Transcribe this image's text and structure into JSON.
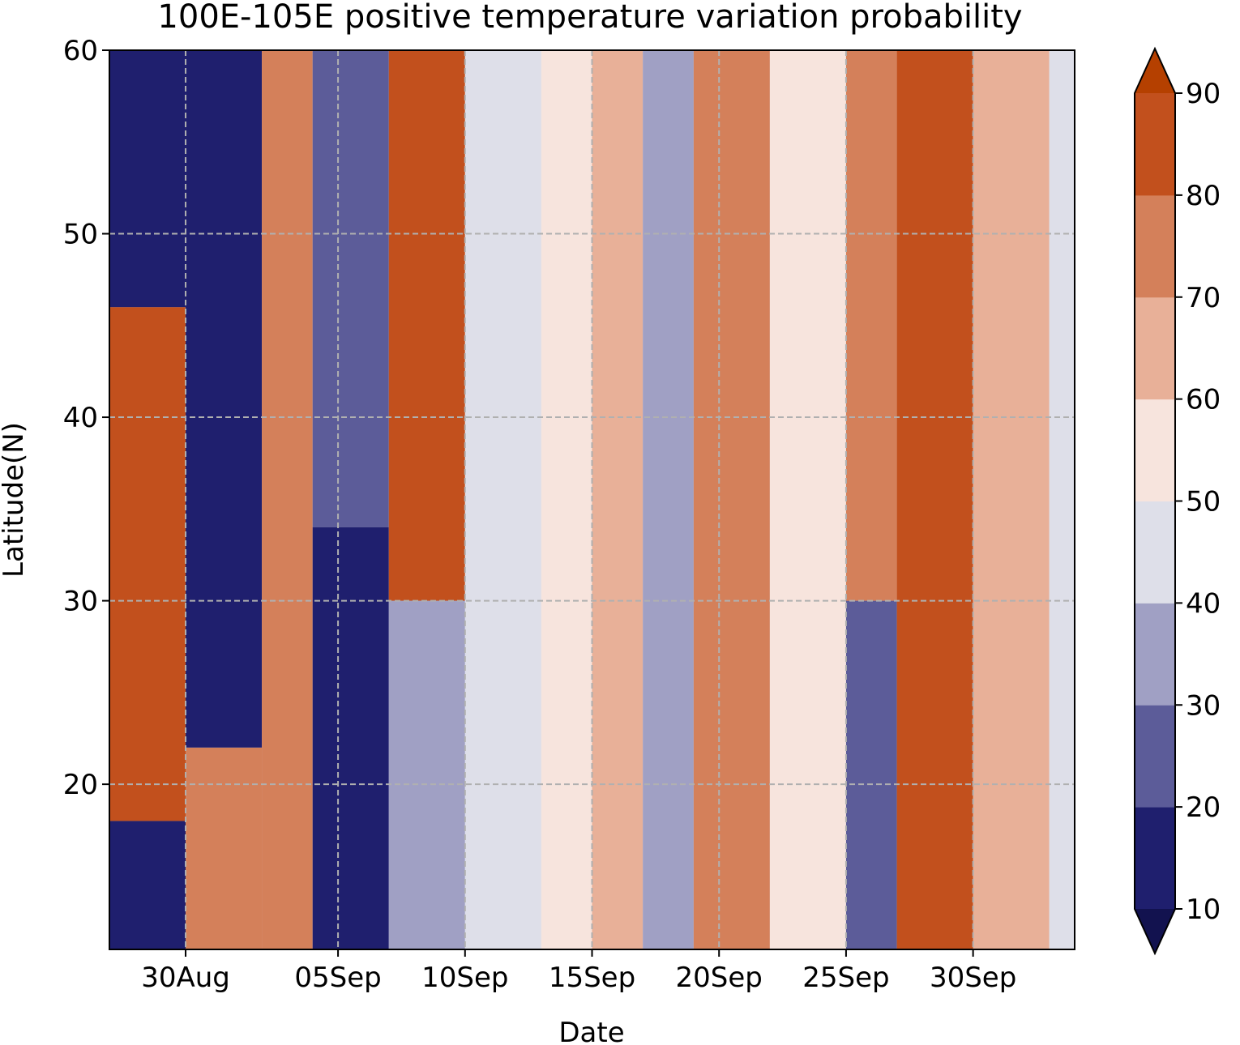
{
  "chart_data": {
    "type": "heatmap",
    "subtype": "filled-contour",
    "title": "100E-105E positive temperature variation probability",
    "xlabel": "Date",
    "ylabel": "Latitude(N)",
    "x_tick_labels": [
      "30Aug",
      "05Sep",
      "10Sep",
      "15Sep",
      "20Sep",
      "25Sep",
      "30Sep"
    ],
    "x_tick_dates": [
      "08-30",
      "09-05",
      "09-10",
      "09-15",
      "09-20",
      "09-25",
      "09-30"
    ],
    "xlim": [
      "08-27",
      "10-04"
    ],
    "y_ticks": [
      20,
      30,
      40,
      50,
      60
    ],
    "ylim": [
      11,
      60
    ],
    "grid": true,
    "colorbar": {
      "levels": [
        10,
        20,
        30,
        40,
        50,
        60,
        70,
        80,
        90
      ],
      "tick_labels": [
        "10",
        "20",
        "30",
        "40",
        "50",
        "60",
        "70",
        "80",
        "90"
      ],
      "extend": "both",
      "colors": [
        "#1f1f6e",
        "#5c5c99",
        "#a0a0c4",
        "#dedfe9",
        "#f7e4dd",
        "#e8b098",
        "#d4805a",
        "#c2501d",
        "#b54000"
      ],
      "under_color": "#12124f"
    },
    "bands": [
      {
        "date": "08-27",
        "lat_min": 11,
        "lat_max": 18,
        "value": 12
      },
      {
        "date": "08-27",
        "lat_min": 18,
        "lat_max": 46,
        "value": 82
      },
      {
        "date": "08-27",
        "lat_min": 46,
        "lat_max": 60,
        "value": 13
      },
      {
        "date": "08-30",
        "lat_min": 11,
        "lat_max": 22,
        "value": 78
      },
      {
        "date": "08-30",
        "lat_min": 22,
        "lat_max": 60,
        "value": 14
      },
      {
        "date": "09-02",
        "lat_min": 11,
        "lat_max": 30,
        "value": 75
      },
      {
        "date": "09-02",
        "lat_min": 30,
        "lat_max": 60,
        "value": 72
      },
      {
        "date": "09-04",
        "lat_min": 11,
        "lat_max": 34,
        "value": 17
      },
      {
        "date": "09-04",
        "lat_min": 34,
        "lat_max": 60,
        "value": 28
      },
      {
        "date": "09-07",
        "lat_min": 11,
        "lat_max": 30,
        "value": 35
      },
      {
        "date": "09-07",
        "lat_min": 30,
        "lat_max": 60,
        "value": 86
      },
      {
        "date": "09-10",
        "lat_min": 11,
        "lat_max": 60,
        "value": 45
      },
      {
        "date": "09-13",
        "lat_min": 11,
        "lat_max": 60,
        "value": 55
      },
      {
        "date": "09-15",
        "lat_min": 11,
        "lat_max": 60,
        "value": 68
      },
      {
        "date": "09-17",
        "lat_min": 11,
        "lat_max": 60,
        "value": 32
      },
      {
        "date": "09-19",
        "lat_min": 11,
        "lat_max": 60,
        "value": 76
      },
      {
        "date": "09-22",
        "lat_min": 11,
        "lat_max": 60,
        "value": 58
      },
      {
        "date": "09-25",
        "lat_min": 11,
        "lat_max": 30,
        "value": 22
      },
      {
        "date": "09-25",
        "lat_min": 30,
        "lat_max": 60,
        "value": 70
      },
      {
        "date": "09-27",
        "lat_min": 11,
        "lat_max": 60,
        "value": 84
      },
      {
        "date": "09-30",
        "lat_min": 11,
        "lat_max": 60,
        "value": 62
      },
      {
        "date": "10-03",
        "lat_min": 11,
        "lat_max": 60,
        "value": 40
      }
    ]
  }
}
